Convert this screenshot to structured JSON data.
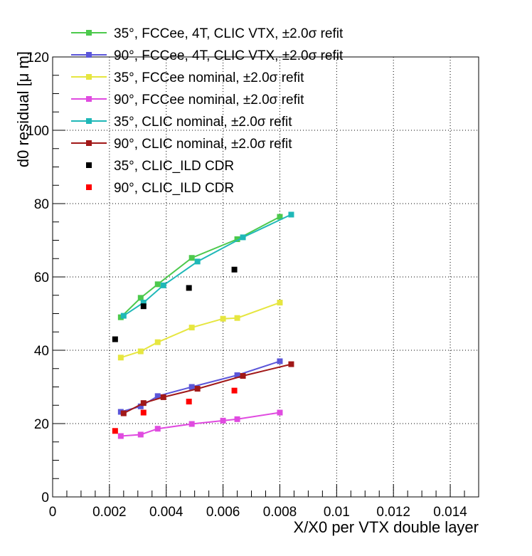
{
  "chart_data": {
    "type": "line",
    "title": "",
    "xlabel": "X/X0 per VTX double layer",
    "ylabel": "d0 residual [μ m]",
    "xlim": [
      0,
      0.015
    ],
    "ylim": [
      0,
      120
    ],
    "x_ticks": [
      "0",
      "0.002",
      "0.004",
      "0.006",
      "0.008",
      "0.01",
      "0.012",
      "0.014"
    ],
    "y_ticks": [
      "0",
      "20",
      "40",
      "60",
      "80",
      "100",
      "120"
    ],
    "grid": true,
    "legend_position": "top",
    "series": [
      {
        "name": "35°, FCCee, 4T, CLIC VTX, ±2.0σ refit",
        "style": "line+markers",
        "color": "#4cc94c",
        "x": [
          0.0024,
          0.0031,
          0.0037,
          0.0049,
          0.0065,
          0.008
        ],
        "y": [
          49.0,
          54.3,
          58.0,
          65.2,
          70.3,
          76.4
        ]
      },
      {
        "name": "90°, FCCee, 4T, CLIC VTX, ±2.0σ refit",
        "style": "line+markers",
        "color": "#5b56d9",
        "x": [
          0.0024,
          0.0031,
          0.0037,
          0.0049,
          0.0065,
          0.008
        ],
        "y": [
          23.2,
          24.7,
          27.5,
          30.0,
          33.2,
          37.0
        ]
      },
      {
        "name": "35°, FCCee nominal, ±2.0σ refit",
        "style": "line+markers",
        "color": "#e6e640",
        "x": [
          0.0024,
          0.0031,
          0.0037,
          0.0049,
          0.006,
          0.0065,
          0.008
        ],
        "y": [
          38.0,
          39.7,
          42.2,
          46.2,
          48.6,
          48.8,
          53.0
        ]
      },
      {
        "name": "90°, FCCee nominal, ±2.0σ refit",
        "style": "line+markers",
        "color": "#e04be0",
        "x": [
          0.0024,
          0.0031,
          0.0037,
          0.0049,
          0.006,
          0.0065,
          0.008
        ],
        "y": [
          16.6,
          17.0,
          18.6,
          19.9,
          20.8,
          21.2,
          23.0
        ]
      },
      {
        "name": "35°, CLIC nominal, ±2.0σ refit",
        "style": "line+markers",
        "color": "#1fb8b8",
        "x": [
          0.0025,
          0.0032,
          0.0039,
          0.0051,
          0.0067,
          0.0084
        ],
        "y": [
          49.4,
          53.0,
          57.7,
          64.2,
          70.8,
          77.0
        ]
      },
      {
        "name": "90°, CLIC nominal, ±2.0σ refit",
        "style": "line+markers",
        "color": "#a11818",
        "x": [
          0.0025,
          0.0032,
          0.0039,
          0.0051,
          0.0067,
          0.0084
        ],
        "y": [
          22.8,
          25.6,
          27.2,
          29.5,
          33.0,
          36.2
        ]
      },
      {
        "name": "35°, CLIC_ILD CDR",
        "style": "markers",
        "color": "#000000",
        "x": [
          0.0022,
          0.0032,
          0.0048,
          0.0064
        ],
        "y": [
          43.0,
          52.0,
          57.0,
          62.0
        ]
      },
      {
        "name": "90°, CLIC_ILD CDR",
        "style": "markers",
        "color": "#ff0000",
        "x": [
          0.0022,
          0.0032,
          0.0048,
          0.0064
        ],
        "y": [
          18.0,
          23.0,
          26.0,
          29.0
        ]
      }
    ]
  }
}
